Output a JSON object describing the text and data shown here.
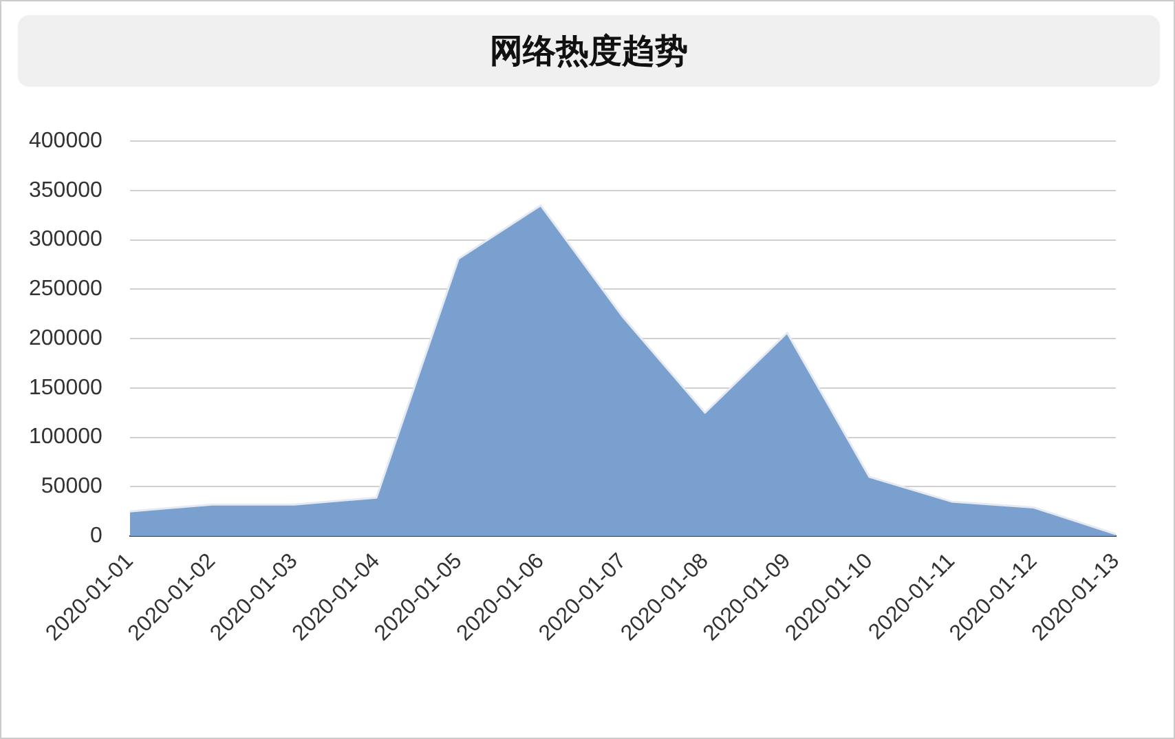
{
  "chart_data": {
    "type": "area",
    "title": "网络热度趋势",
    "categories": [
      "2020-01-01",
      "2020-01-02",
      "2020-01-03",
      "2020-01-04",
      "2020-01-05",
      "2020-01-06",
      "2020-01-07",
      "2020-01-08",
      "2020-01-09",
      "2020-01-10",
      "2020-01-11",
      "2020-01-12",
      "2020-01-13"
    ],
    "series": [
      {
        "color": "#7aa0cf",
        "values": [
          25000,
          32000,
          32000,
          39000,
          281000,
          335000,
          222000,
          125000,
          206000,
          60000,
          35000,
          29000,
          2000
        ]
      }
    ],
    "ylim": [
      0,
      400000
    ],
    "yticks": [
      0,
      50000,
      100000,
      150000,
      200000,
      250000,
      300000,
      350000,
      400000
    ],
    "grid": "y",
    "legend": false
  }
}
